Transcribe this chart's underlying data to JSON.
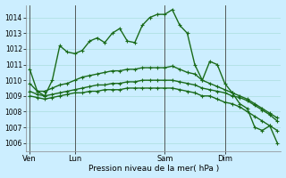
{
  "background_color": "#cceeff",
  "grid_color": "#aadddd",
  "line_color": "#1a6b1a",
  "ylabel": "Pression niveau de la mer( hPa )",
  "ylim": [
    1005.5,
    1014.8
  ],
  "yticks": [
    1006,
    1007,
    1008,
    1009,
    1010,
    1011,
    1012,
    1013,
    1014
  ],
  "xtick_labels": [
    "Ven",
    "Lun",
    "Sam",
    "Dim"
  ],
  "xtick_positions": [
    0,
    6,
    18,
    26
  ],
  "vlines": [
    0,
    6,
    18,
    26
  ],
  "series": [
    [
      1010.7,
      1009.3,
      1009.0,
      1010.0,
      1012.2,
      1011.8,
      1011.7,
      1011.9,
      1012.5,
      1012.7,
      1012.4,
      1013.0,
      1013.3,
      1012.5,
      1012.4,
      1013.5,
      1014.0,
      1014.2,
      1014.2,
      1014.5,
      1013.5,
      1013.0,
      1011.0,
      1010.0,
      1011.2,
      1011.0,
      1009.8,
      1009.2,
      1008.5,
      1008.2,
      1007.0,
      1006.8,
      1007.1,
      1006.0
    ],
    [
      1009.8,
      1009.3,
      1009.3,
      1009.5,
      1009.7,
      1009.8,
      1010.0,
      1010.2,
      1010.3,
      1010.4,
      1010.5,
      1010.6,
      1010.6,
      1010.7,
      1010.7,
      1010.8,
      1010.8,
      1010.8,
      1010.8,
      1010.9,
      1010.7,
      1010.5,
      1010.4,
      1010.0,
      1009.8,
      1009.6,
      1009.4,
      1009.2,
      1009.0,
      1008.8,
      1008.5,
      1008.2,
      1007.9,
      1007.6
    ],
    [
      1009.3,
      1009.1,
      1009.0,
      1009.1,
      1009.2,
      1009.3,
      1009.4,
      1009.5,
      1009.6,
      1009.7,
      1009.7,
      1009.8,
      1009.8,
      1009.9,
      1009.9,
      1010.0,
      1010.0,
      1010.0,
      1010.0,
      1010.0,
      1009.9,
      1009.8,
      1009.7,
      1009.5,
      1009.4,
      1009.3,
      1009.2,
      1009.0,
      1008.9,
      1008.7,
      1008.4,
      1008.1,
      1007.8,
      1007.4
    ],
    [
      1009.0,
      1008.9,
      1008.8,
      1008.9,
      1009.0,
      1009.1,
      1009.2,
      1009.2,
      1009.3,
      1009.3,
      1009.4,
      1009.4,
      1009.4,
      1009.5,
      1009.5,
      1009.5,
      1009.5,
      1009.5,
      1009.5,
      1009.5,
      1009.4,
      1009.3,
      1009.2,
      1009.0,
      1009.0,
      1008.8,
      1008.6,
      1008.5,
      1008.3,
      1008.0,
      1007.7,
      1007.4,
      1007.1,
      1006.8
    ]
  ]
}
